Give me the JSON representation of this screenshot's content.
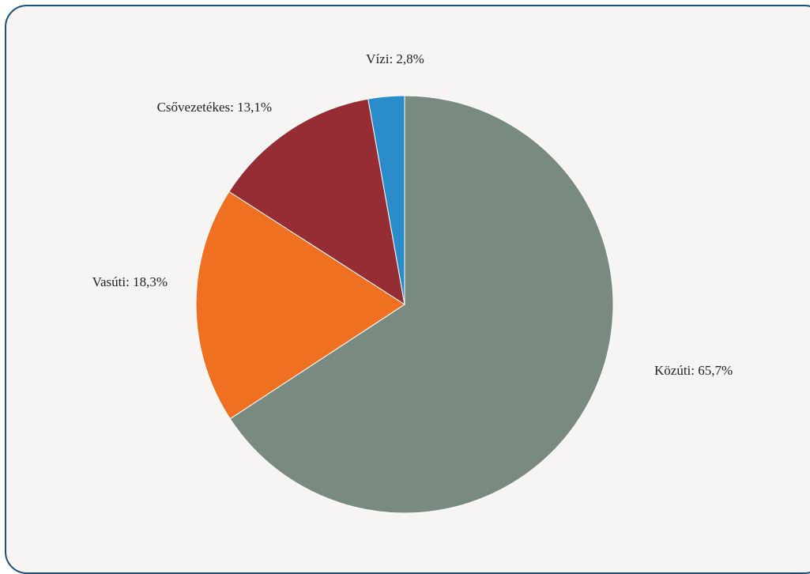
{
  "chart_data": {
    "type": "pie",
    "title": "",
    "slices": [
      {
        "label": "Közúti",
        "value": 65.7,
        "display": "Közúti: 65,7%",
        "color": "#798b81"
      },
      {
        "label": "Vasúti",
        "value": 18.3,
        "display": "Vasúti: 18,3%",
        "color": "#f07022"
      },
      {
        "label": "Csővezetékes",
        "value": 13.1,
        "display": "Csővezetékes: 13,1%",
        "color": "#962d34"
      },
      {
        "label": "Vízi",
        "value": 2.8,
        "display": "Vízi: 2,8%",
        "color": "#2b8ccc"
      }
    ],
    "start_angle": "top",
    "direction": "clockwise",
    "legend": "none"
  }
}
